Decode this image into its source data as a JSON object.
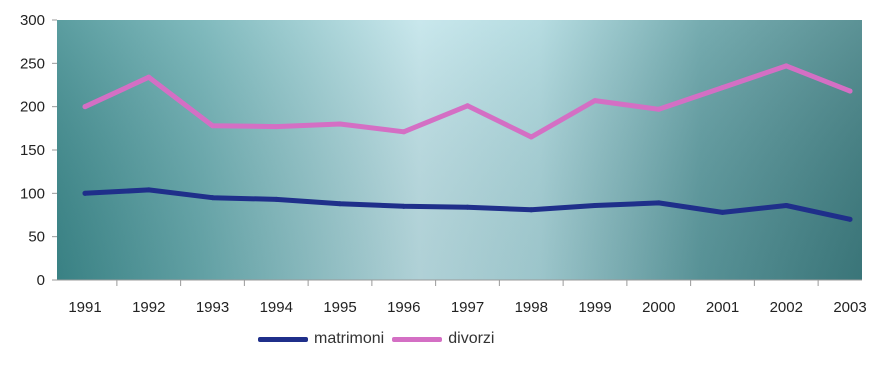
{
  "chart_data": {
    "type": "line",
    "title": "",
    "xlabel": "",
    "ylabel": "",
    "categories": [
      "1991",
      "1992",
      "1993",
      "1994",
      "1995",
      "1996",
      "1997",
      "1998",
      "1999",
      "2000",
      "2001",
      "2002",
      "2003"
    ],
    "ylim": [
      0,
      300
    ],
    "yticks": [
      "0",
      "50",
      "100",
      "150",
      "200",
      "250",
      "300"
    ],
    "grid": false,
    "legend_position": "bottom",
    "series": [
      {
        "name": "matrimoni",
        "color": "#1f2f8a",
        "values": [
          100,
          104,
          95,
          93,
          88,
          85,
          84,
          81,
          86,
          89,
          78,
          86,
          70
        ]
      },
      {
        "name": "divorzi",
        "color": "#d46fc4",
        "values": [
          200,
          234,
          178,
          177,
          180,
          171,
          201,
          165,
          207,
          197,
          222,
          247,
          218
        ]
      }
    ]
  }
}
